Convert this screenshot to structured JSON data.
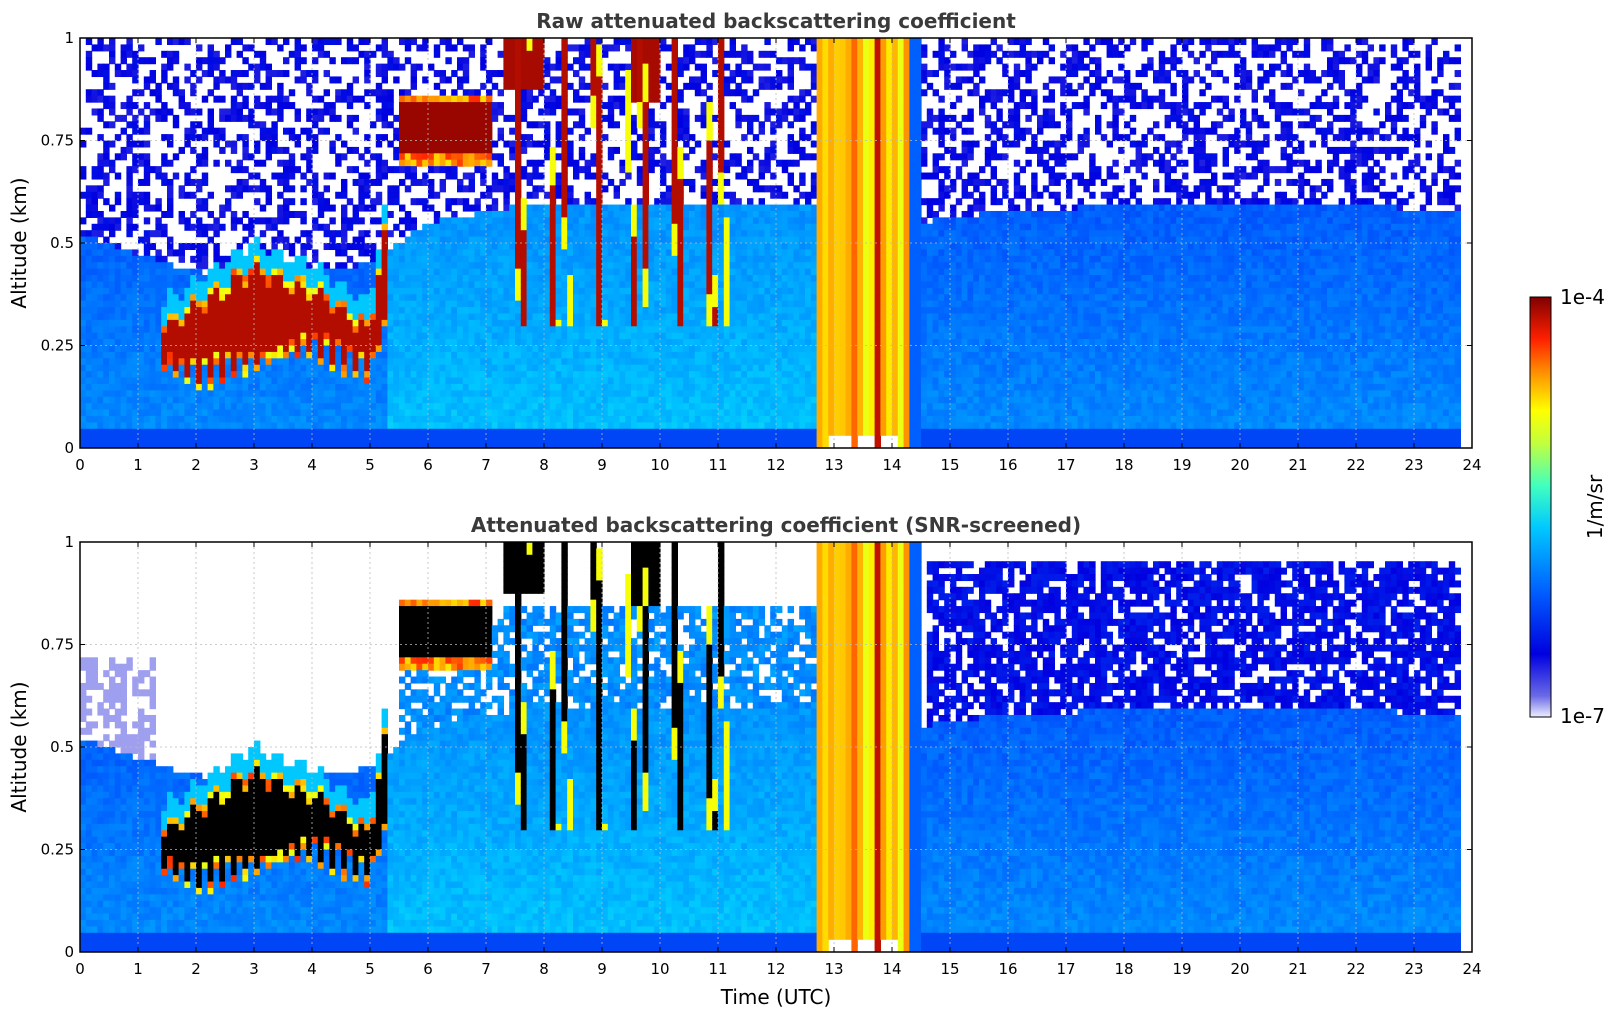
{
  "chart_data": [
    {
      "type": "heatmap",
      "title": "Raw attenuated backscattering coefficient",
      "xlabel": "",
      "ylabel": "Altitude (km)",
      "xlim": [
        0,
        24
      ],
      "ylim": [
        0,
        1
      ],
      "xticks": [
        "0",
        "1",
        "2",
        "3",
        "4",
        "5",
        "6",
        "7",
        "8",
        "9",
        "10",
        "11",
        "12",
        "13",
        "14",
        "15",
        "16",
        "17",
        "18",
        "19",
        "20",
        "21",
        "22",
        "23",
        "24"
      ],
      "yticks": [
        "0",
        "0.25",
        "0.5",
        "0.75",
        "1"
      ],
      "grid": true,
      "screened": false,
      "data_end_hour": 23.8,
      "features": [
        {
          "layer": "aerosol/cloud",
          "x": [
            1.4,
            5.0
          ],
          "base_km": [
            0.17,
            0.32
          ],
          "top_km": [
            0.3,
            0.45
          ],
          "max": "1e-4"
        },
        {
          "layer": "elevated cloud",
          "x": [
            5.5,
            7.1
          ],
          "base_km": [
            0.68
          ],
          "top_km": [
            0.85
          ],
          "max": "1e-4"
        },
        {
          "layer": "precipitation / saturation",
          "x": [
            12.75,
            14.3
          ]
        }
      ]
    },
    {
      "type": "heatmap",
      "title": "Attenuated backscattering coefficient (SNR-screened)",
      "xlabel": "Time (UTC)",
      "ylabel": "Altitude (km)",
      "xlim": [
        0,
        24
      ],
      "ylim": [
        0,
        1
      ],
      "xticks": [
        "0",
        "1",
        "2",
        "3",
        "4",
        "5",
        "6",
        "7",
        "8",
        "9",
        "10",
        "11",
        "12",
        "13",
        "14",
        "15",
        "16",
        "17",
        "18",
        "19",
        "20",
        "21",
        "22",
        "23",
        "24"
      ],
      "yticks": [
        "0",
        "0.25",
        "0.5",
        "0.75",
        "1"
      ],
      "grid": true,
      "screened": true,
      "data_end_hour": 23.8
    }
  ],
  "colorbar": {
    "label": "1/m/sr",
    "max_label": "1e-4",
    "min_label": "1e-7",
    "scale": "log",
    "colormap": "jet"
  }
}
